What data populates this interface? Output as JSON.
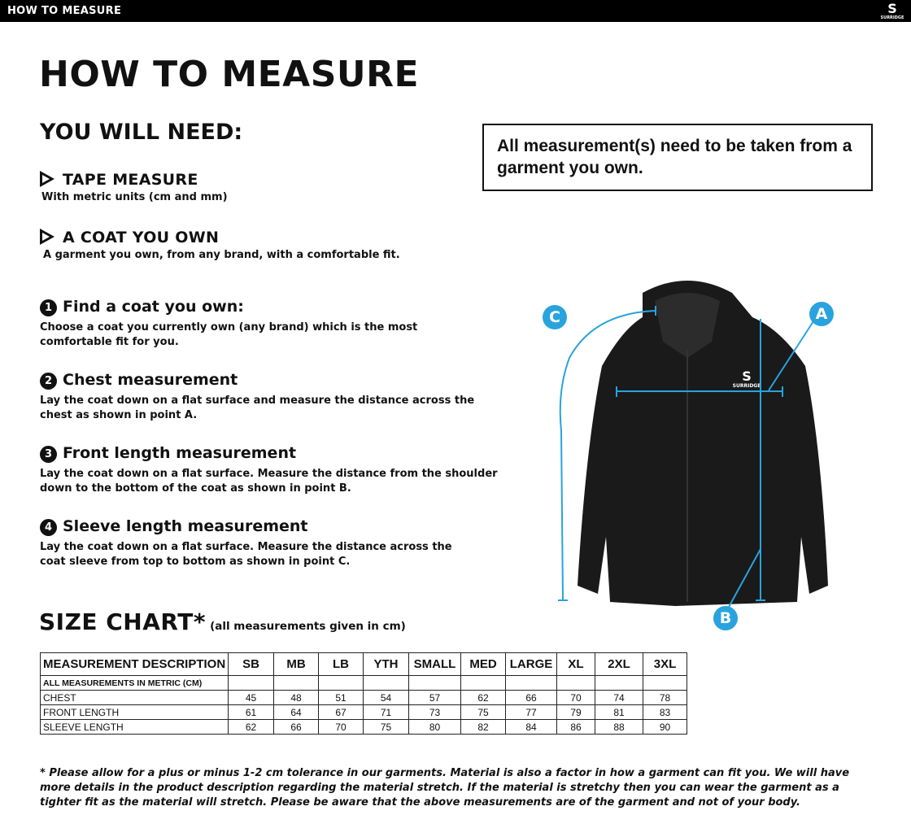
{
  "topbar": {
    "title": "HOW TO MEASURE",
    "logo_text": "SURRIDGE"
  },
  "title": "HOW TO MEASURE",
  "you_will_need": {
    "heading": "YOU WILL NEED:",
    "items": [
      {
        "label": "TAPE MEASURE",
        "desc": "With metric units (cm and mm)"
      },
      {
        "label": "A COAT YOU OWN",
        "desc": "A garment you own, from any brand, with a comfortable fit."
      }
    ]
  },
  "note": "All measurement(s) need to be taken from a garment you own.",
  "steps": [
    {
      "num": "1",
      "title": "Find a coat you own:",
      "desc": "Choose a coat you currently own (any brand) which is the most comfortable fit for you."
    },
    {
      "num": "2",
      "title": "Chest measurement",
      "desc": "Lay the coat down on a flat surface and measure the distance across the chest as shown in point A."
    },
    {
      "num": "3",
      "title": "Front length measurement",
      "desc": "Lay the coat down on a flat surface. Measure the distance from the shoulder down to the bottom of the coat as shown in point B."
    },
    {
      "num": "4",
      "title": "Sleeve length measurement",
      "desc": "Lay the coat down on a flat surface. Measure the distance across the coat sleeve from top to bottom as shown in point C."
    }
  ],
  "size_chart": {
    "heading": "SIZE CHART*",
    "subheading": "(all measurements given in cm)",
    "columns": [
      "MEASUREMENT DESCRIPTION",
      "SB",
      "MB",
      "LB",
      "YTH",
      "SMALL",
      "MED",
      "LARGE",
      "XL",
      "2XL",
      "3XL"
    ],
    "subheader": "ALL MEASUREMENTS IN METRIC (CM)",
    "rows": [
      {
        "label": "CHEST",
        "values": [
          "45",
          "48",
          "51",
          "54",
          "57",
          "62",
          "66",
          "70",
          "74",
          "78"
        ]
      },
      {
        "label": "FRONT LENGTH",
        "values": [
          "61",
          "64",
          "67",
          "71",
          "73",
          "75",
          "77",
          "79",
          "81",
          "83"
        ]
      },
      {
        "label": "SLEEVE LENGTH",
        "values": [
          "62",
          "66",
          "70",
          "75",
          "80",
          "82",
          "84",
          "86",
          "88",
          "90"
        ]
      }
    ]
  },
  "diagram": {
    "labels": {
      "a": "A",
      "b": "B",
      "c": "C"
    },
    "jacket_logo": "SURRIDGE",
    "accent": "#29a3dd"
  },
  "footnote": "* Please allow for a plus or minus 1-2 cm tolerance in our garments. Material is also a factor in how a garment can fit you. We will have more details in the product description regarding the material stretch.  If the material is stretchy then you can wear the garment as a tighter fit as the material will stretch.  Please be aware that the above measurements are of the garment and not of your body."
}
